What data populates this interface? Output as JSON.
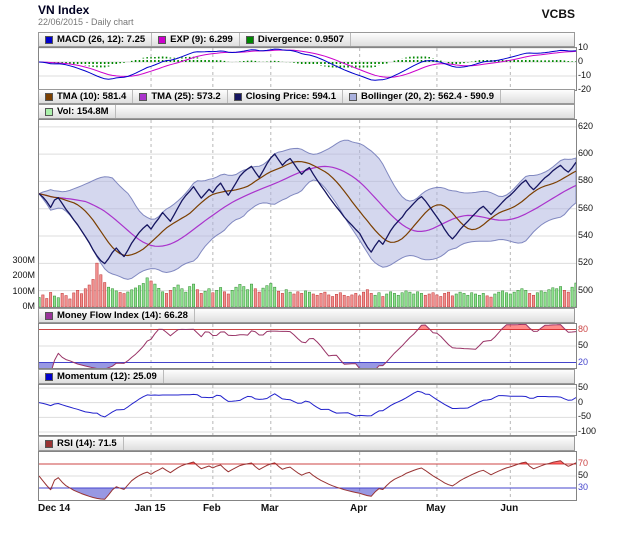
{
  "header": {
    "title": "VN Index",
    "subtitle": "22/06/2015 - Daily chart",
    "brand": "VCBS"
  },
  "colors": {
    "macd_line": "#0000cc",
    "signal_line": "#cc00cc",
    "histogram": "#008800",
    "tma10_line": "#7b3f00",
    "tma25_line": "#aa33cc",
    "close_line": "#151560",
    "bollinger_fill": "#a9b0dd",
    "bollinger_stroke": "#8088c0",
    "volume_up": "#8fe08f",
    "volume_down": "#f0908f",
    "mfi_line": "#993366",
    "momentum_line": "#2222cc",
    "rsi_line": "#993333",
    "level_red": "#cc4444",
    "level_blue": "#4444cc",
    "grid": "#dddddd",
    "vgrid": "#b8b8b8"
  },
  "panels": {
    "macd": {
      "legend": [
        {
          "label": "MACD (26, 12): 7.25",
          "color": "#0000cc"
        },
        {
          "label": "EXP (9): 6.299",
          "color": "#cc00cc"
        },
        {
          "label": "Divergence: 0.9507",
          "color": "#008800"
        }
      ]
    },
    "main": {
      "legend": [
        {
          "label": "TMA (10): 581.4",
          "color": "#7b3f00"
        },
        {
          "label": "TMA (25): 573.2",
          "color": "#aa33cc"
        },
        {
          "label": "Closing Price: 594.1",
          "color": "#151560"
        },
        {
          "label": "Bollinger (20, 2): 562.4 - 590.9",
          "color": "#a9b0dd"
        }
      ],
      "legend2": [
        {
          "label": "Vol: 154.8M",
          "color": "#aaf0aa"
        }
      ]
    },
    "mfi": {
      "legend": [
        {
          "label": "Money Flow Index (14): 66.28",
          "color": "#993399"
        }
      ]
    },
    "momentum": {
      "legend": [
        {
          "label": "Momentum (12): 25.09",
          "color": "#0000cc"
        }
      ]
    },
    "rsi": {
      "legend": [
        {
          "label": "RSI (14): 71.5",
          "color": "#993333"
        }
      ]
    }
  },
  "chart_data": {
    "type": "line",
    "title": "VN Index daily chart with MACD, Bollinger, Volume, MFI, Momentum and RSI panels",
    "x_tick_labels": [
      "Dec 14",
      "Jan 15",
      "Feb",
      "Mar",
      "Apr",
      "May",
      "Jun"
    ],
    "x_tick_indices": [
      0,
      29,
      45,
      60,
      83,
      103,
      122
    ],
    "price": {
      "last_close": 594.1,
      "tma10_last": 581.4,
      "tma25_last": 573.2,
      "bollinger_last_low": 562.4,
      "bollinger_last_high": 590.9,
      "ylim": [
        500,
        620
      ],
      "yticks": [
        620,
        600,
        580,
        560,
        540,
        520,
        500
      ],
      "close": [
        571.0,
        568.5,
        565.2,
        561.0,
        566.3,
        568.1,
        563.8,
        559.5,
        556.0,
        551.8,
        548.3,
        543.9,
        539.6,
        535.2,
        529.8,
        525.5,
        521.9,
        519.8,
        523.4,
        528.0,
        531.2,
        527.8,
        524.9,
        529.6,
        534.8,
        538.9,
        542.7,
        545.8,
        548.2,
        545.1,
        549.3,
        553.0,
        557.2,
        553.9,
        550.8,
        555.6,
        560.9,
        565.8,
        569.7,
        572.8,
        576.2,
        571.9,
        567.8,
        570.9,
        574.2,
        571.8,
        575.9,
        578.8,
        574.1,
        569.9,
        574.3,
        578.9,
        583.8,
        586.9,
        589.2,
        591.1,
        586.8,
        582.9,
        587.8,
        592.9,
        597.2,
        600.1,
        595.9,
        591.8,
        594.9,
        596.8,
        592.9,
        588.8,
        585.2,
        588.3,
        590.1,
        585.3,
        580.9,
        576.8,
        572.9,
        568.8,
        564.9,
        561.2,
        557.8,
        553.9,
        550.8,
        547.9,
        544.8,
        541.9,
        536.8,
        531.9,
        528.2,
        532.9,
        536.8,
        533.9,
        538.8,
        543.9,
        547.8,
        550.9,
        553.8,
        557.9,
        560.8,
        563.9,
        566.8,
        568.9,
        565.8,
        561.9,
        557.8,
        553.9,
        549.8,
        544.9,
        540.8,
        537.9,
        540.9,
        544.8,
        547.9,
        550.8,
        553.9,
        556.8,
        559.9,
        561.8,
        558.9,
        555.8,
        558.9,
        561.8,
        564.9,
        567.8,
        569.9,
        572.8,
        575.9,
        578.8,
        580.9,
        576.8,
        573.9,
        576.8,
        579.9,
        582.8,
        584.9,
        587.8,
        589.9,
        591.8,
        588.9,
        586.8,
        589.9,
        594.1
      ]
    },
    "volume": {
      "last_label": "Vol: 154.8M",
      "yticks": [
        {
          "v": 300,
          "label": "300M"
        },
        {
          "v": 200,
          "label": "200M"
        },
        {
          "v": 100,
          "label": "100M"
        },
        {
          "v": 0,
          "label": "0M"
        }
      ],
      "values_millions": [
        62,
        78,
        55,
        94,
        71,
        60,
        88,
        74,
        52,
        91,
        108,
        86,
        118,
        142,
        178,
        283,
        208,
        158,
        128,
        118,
        104,
        94,
        87,
        97,
        111,
        123,
        138,
        152,
        188,
        168,
        148,
        121,
        98,
        88,
        108,
        126,
        142,
        118,
        96,
        132,
        148,
        112,
        88,
        102,
        118,
        92,
        108,
        126,
        98,
        84,
        108,
        128,
        146,
        132,
        112,
        148,
        118,
        96,
        122,
        138,
        152,
        128,
        102,
        88,
        112,
        96,
        84,
        98,
        88,
        104,
        96,
        84,
        76,
        88,
        96,
        78,
        68,
        82,
        92,
        76,
        68,
        78,
        88,
        72,
        96,
        112,
        88,
        76,
        92,
        68,
        84,
        98,
        88,
        76,
        92,
        104,
        96,
        84,
        98,
        88,
        76,
        84,
        92,
        78,
        68,
        88,
        96,
        72,
        84,
        96,
        88,
        76,
        92,
        84,
        76,
        88,
        72,
        64,
        84,
        96,
        104,
        92,
        84,
        96,
        108,
        118,
        108,
        88,
        76,
        92,
        104,
        96,
        112,
        124,
        118,
        132,
        108,
        96,
        128,
        154.8
      ]
    },
    "macd": {
      "macd_last": 7.25,
      "signal_last": 6.299,
      "divergence_last": 0.9507,
      "ylim": [
        -20,
        10
      ],
      "yticks": [
        {
          "v": 10,
          "label": "10",
          "color": "#111111"
        },
        {
          "v": 0,
          "label": "0",
          "color": "#111111"
        },
        {
          "v": -10,
          "label": "-10",
          "color": "#111111"
        },
        {
          "v": -20,
          "label": "-20",
          "color": "#111111"
        }
      ]
    },
    "mfi": {
      "last": 66.28,
      "ylim": [
        10,
        90
      ],
      "levels": [
        {
          "v": 80,
          "color": "#cc4444"
        },
        {
          "v": 20,
          "color": "#4444cc"
        }
      ],
      "yticks": [
        {
          "v": 80,
          "label": "80",
          "color": "#cc4444"
        },
        {
          "v": 50,
          "label": "50",
          "color": "#111111"
        },
        {
          "v": 20,
          "label": "20",
          "color": "#4444cc"
        }
      ]
    },
    "momentum": {
      "last": 25.09,
      "ylim": [
        -110,
        60
      ],
      "yticks": [
        {
          "v": 50,
          "label": "50",
          "color": "#111111"
        },
        {
          "v": 0,
          "label": "0",
          "color": "#111111"
        },
        {
          "v": -50,
          "label": "-50",
          "color": "#111111"
        },
        {
          "v": -100,
          "label": "-100",
          "color": "#111111"
        }
      ]
    },
    "rsi": {
      "last": 71.5,
      "ylim": [
        10,
        90
      ],
      "levels": [
        {
          "v": 70,
          "color": "#cc4444"
        },
        {
          "v": 30,
          "color": "#4444cc"
        }
      ],
      "yticks": [
        {
          "v": 70,
          "label": "70",
          "color": "#cc4444"
        },
        {
          "v": 50,
          "label": "50",
          "color": "#111111"
        },
        {
          "v": 30,
          "label": "30",
          "color": "#4444cc"
        }
      ]
    }
  }
}
